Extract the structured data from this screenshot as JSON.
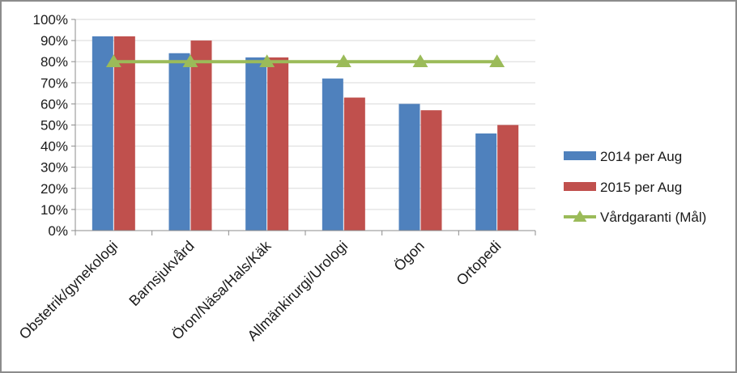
{
  "chart_data": {
    "type": "bar",
    "categories": [
      "Obstetrik/gynekologi",
      "Barnsjukvård",
      "Öron/Näsa/Hals/Käk",
      "Allmänkirurgi/Urologi",
      "Ögon",
      "Ortopedi"
    ],
    "series": [
      {
        "name": "2014 per Aug",
        "kind": "bar",
        "color": "#4f81bd",
        "values": [
          92,
          84,
          82,
          72,
          60,
          46
        ]
      },
      {
        "name": "2015 per Aug",
        "kind": "bar",
        "color": "#c0504d",
        "values": [
          92,
          90,
          82,
          63,
          57,
          50
        ]
      },
      {
        "name": "Vårdgaranti (Mål)",
        "kind": "line",
        "marker": "triangle",
        "color": "#9bbb59",
        "values": [
          80,
          80,
          80,
          80,
          80,
          80
        ]
      }
    ],
    "y_ticks": [
      "0%",
      "10%",
      "20%",
      "30%",
      "40%",
      "50%",
      "60%",
      "70%",
      "80%",
      "90%",
      "100%"
    ],
    "ylim": [
      0,
      100
    ],
    "grid": true,
    "legend_position": "right",
    "title": "",
    "xlabel": "",
    "ylabel": ""
  }
}
